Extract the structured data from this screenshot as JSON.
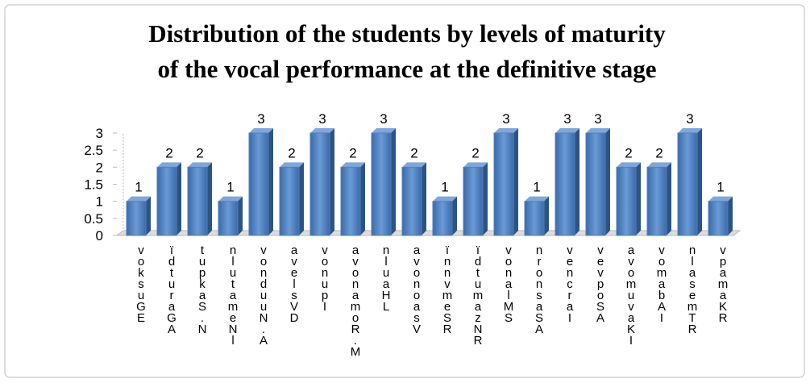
{
  "chart_data": {
    "type": "bar",
    "title": [
      "Distribution of the students by levels of maturity",
      "of the vocal performance at the definitive stage"
    ],
    "categories": [
      "voksuGE",
      "ïdturaGA",
      "tupkaS.N",
      "nlutameNl",
      "vonduuN.A",
      "avelsVD",
      "vonupI",
      "avonamoR.M",
      "nluaHL",
      "avonoasV",
      "ïnnvmeSR",
      "ïdtumazNR",
      "vonalMS",
      "nronsaSA",
      "vencraI",
      "vevpoSA",
      "avomuvaKI",
      "vomabAI",
      "nlasemTR",
      "vpamaKR"
    ],
    "values": [
      1,
      2,
      2,
      1,
      3,
      2,
      3,
      2,
      3,
      2,
      1,
      2,
      3,
      1,
      3,
      3,
      2,
      2,
      3,
      1
    ],
    "color": "#4f81bd",
    "ylim": [
      0,
      3
    ],
    "yticks": [
      0,
      0.5,
      1,
      1.5,
      2,
      2.5,
      3
    ],
    "grid": false
  }
}
